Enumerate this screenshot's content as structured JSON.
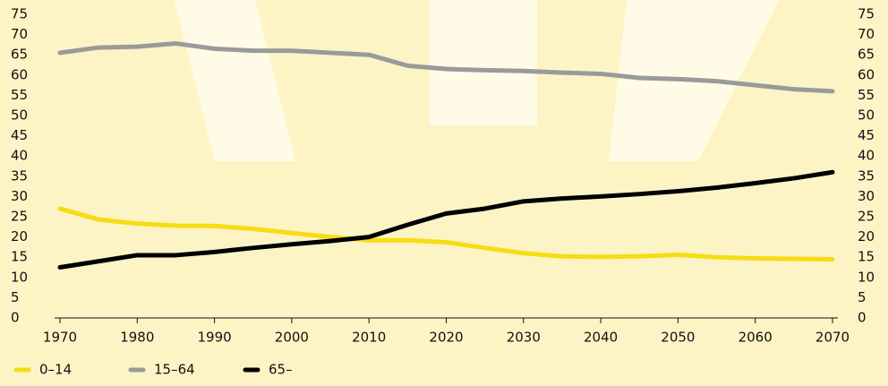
{
  "chart_data": {
    "type": "line",
    "x": [
      1970,
      1975,
      1980,
      1985,
      1990,
      1995,
      2000,
      2005,
      2010,
      2015,
      2020,
      2025,
      2030,
      2035,
      2040,
      2045,
      2050,
      2055,
      2060,
      2065,
      2070
    ],
    "series": [
      {
        "name": "0–14",
        "color": "#f6dc14",
        "values": [
          27,
          24.3,
          23.3,
          22.8,
          22.7,
          22,
          21,
          20,
          19.2,
          19.2,
          18.7,
          17.3,
          16,
          15.2,
          15.1,
          15.2,
          15.6,
          15,
          14.7,
          14.6,
          14.5
        ]
      },
      {
        "name": "15–64",
        "color": "#9a9a9a",
        "values": [
          65.5,
          66.8,
          67,
          67.8,
          66.5,
          66,
          66,
          65.5,
          65,
          62.3,
          61.5,
          61.2,
          61,
          60.6,
          60.3,
          59.3,
          59,
          58.5,
          57.5,
          56.5,
          56
        ]
      },
      {
        "name": "65–",
        "color": "#000000",
        "values": [
          12.5,
          14,
          15.5,
          15.5,
          16.3,
          17.3,
          18.2,
          19,
          20,
          23,
          25.8,
          27,
          28.8,
          29.5,
          30,
          30.6,
          31.3,
          32.2,
          33.3,
          34.5,
          36
        ]
      }
    ],
    "xlim": [
      1970,
      2070
    ],
    "xticks": [
      1970,
      1980,
      1990,
      2000,
      2010,
      2020,
      2030,
      2040,
      2050,
      2060,
      2070
    ],
    "ylim": [
      0,
      75
    ],
    "yticks": [
      0,
      5,
      10,
      15,
      20,
      25,
      30,
      35,
      40,
      45,
      50,
      55,
      60,
      65,
      70,
      75
    ],
    "legend": "bottom-left"
  }
}
